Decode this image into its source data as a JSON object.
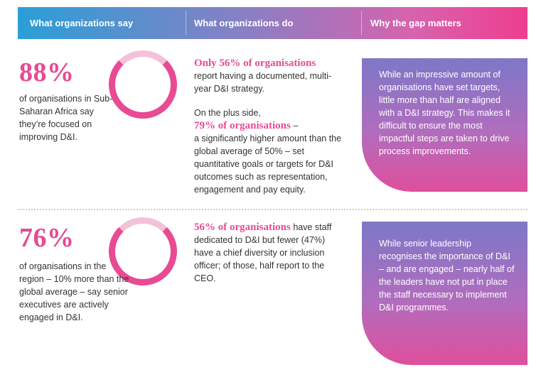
{
  "header": {
    "col1": "What organizations say",
    "col2": "What organizations do",
    "col3": "Why the gap matters"
  },
  "row1": {
    "stat": "88%",
    "stat_value": 88,
    "say_text": "of organisations in Sub-Saharan Africa say they’re focused on improving D&I.",
    "do_highlight_1": "Only 56% of organisations",
    "do_text_1": "report having a documented, multi-year D&I strategy.",
    "do_lead_2": "On the plus side,",
    "do_highlight_2": "79% of organisations",
    "do_text_2a": " –",
    "do_text_2b": "a significantly higher amount than the global average of 50% – set quantitative goals or targets for D&I outcomes such as representation, engagement and pay equity.",
    "gap_text": "While an impressive amount of organisations have set targets, little more than half are aligned with a D&I strategy. This makes it difficult to ensure the most impactful steps are taken to drive process improvements."
  },
  "row2": {
    "stat": "76%",
    "stat_value": 76,
    "say_text": "of organisations in the region – 10% more than the global average – say senior executives are actively engaged in D&I.",
    "do_highlight_1": "56% of organisations",
    "do_text_1": " have staff dedicated to D&I but fewer (47%) have a chief diversity or inclusion officer; of those, half report to the CEO.",
    "gap_text": "While senior leadership recognises the importance of D&I – and are engaged – nearly half of the leaders have not put in place the staff necessary to implement D&I programmes."
  },
  "colors": {
    "accent": "#e84a94",
    "accent_light": "#f3c1d8",
    "header_start": "#2a9fd6",
    "header_end": "#ee3d8f"
  }
}
